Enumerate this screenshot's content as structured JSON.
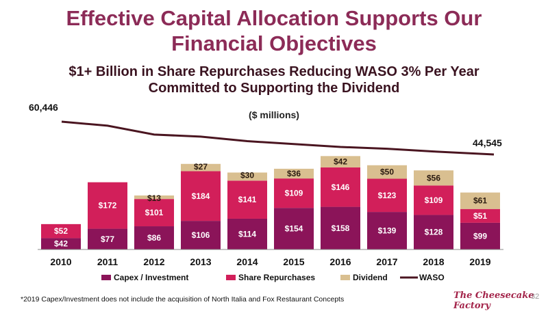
{
  "header": {
    "title_line1": "Effective Capital Allocation Supports Our",
    "title_line2": "Financial Objectives",
    "subtitle_line1": "$1+ Billion in Share Repurchases Reducing WASO 3% Per Year",
    "subtitle_line2": "Committed to Supporting the Dividend"
  },
  "footer": {
    "footnote": "*2019 Capex/Investment does not include the acquisition of North Italia and Fox Restaurant Concepts",
    "logo_text": "The Cheesecake Factory",
    "page_number": "32"
  },
  "colors": {
    "capex": "#8b1459",
    "repurchases": "#d21f5a",
    "dividend": "#d9bf90",
    "waso": "#4a1520"
  },
  "chart_data": {
    "type": "bar",
    "stacked": true,
    "unit_label": "($ millions)",
    "categories": [
      "2010",
      "2011",
      "2012",
      "2013",
      "2014",
      "2015",
      "2016",
      "2017",
      "2018",
      "2019"
    ],
    "series": [
      {
        "name": "Capex / Investment",
        "values": [
          42,
          77,
          86,
          106,
          114,
          154,
          158,
          139,
          128,
          99
        ],
        "labels": [
          "$42",
          "$77",
          "$86",
          "$106",
          "$114",
          "$154",
          "$158",
          "$139",
          "$128",
          "$99"
        ]
      },
      {
        "name": "Share Repurchases",
        "values": [
          52,
          172,
          101,
          184,
          141,
          109,
          146,
          123,
          109,
          51
        ],
        "labels": [
          "$52",
          "$172",
          "$101",
          "$184",
          "$141",
          "$109",
          "$146",
          "$123",
          "$109",
          "$51"
        ]
      },
      {
        "name": "Dividend",
        "values": [
          0,
          0,
          13,
          27,
          30,
          36,
          42,
          50,
          56,
          61
        ],
        "labels": [
          "",
          "",
          "$13",
          "$27",
          "$30",
          "$36",
          "$42",
          "$50",
          "$56",
          "$61"
        ]
      }
    ],
    "line_series": {
      "name": "WASO",
      "values": [
        60446,
        58500,
        54200,
        53200,
        51000,
        49600,
        48200,
        47300,
        46000,
        44545
      ],
      "labels": [
        "60,446",
        "",
        "",
        "",
        "",
        "",
        "",
        "",
        "",
        "44,545"
      ]
    },
    "legend": [
      "Capex / Investment",
      "Share Repurchases",
      "Dividend",
      "WASO"
    ],
    "legend_position": "bottom",
    "grid": false
  }
}
